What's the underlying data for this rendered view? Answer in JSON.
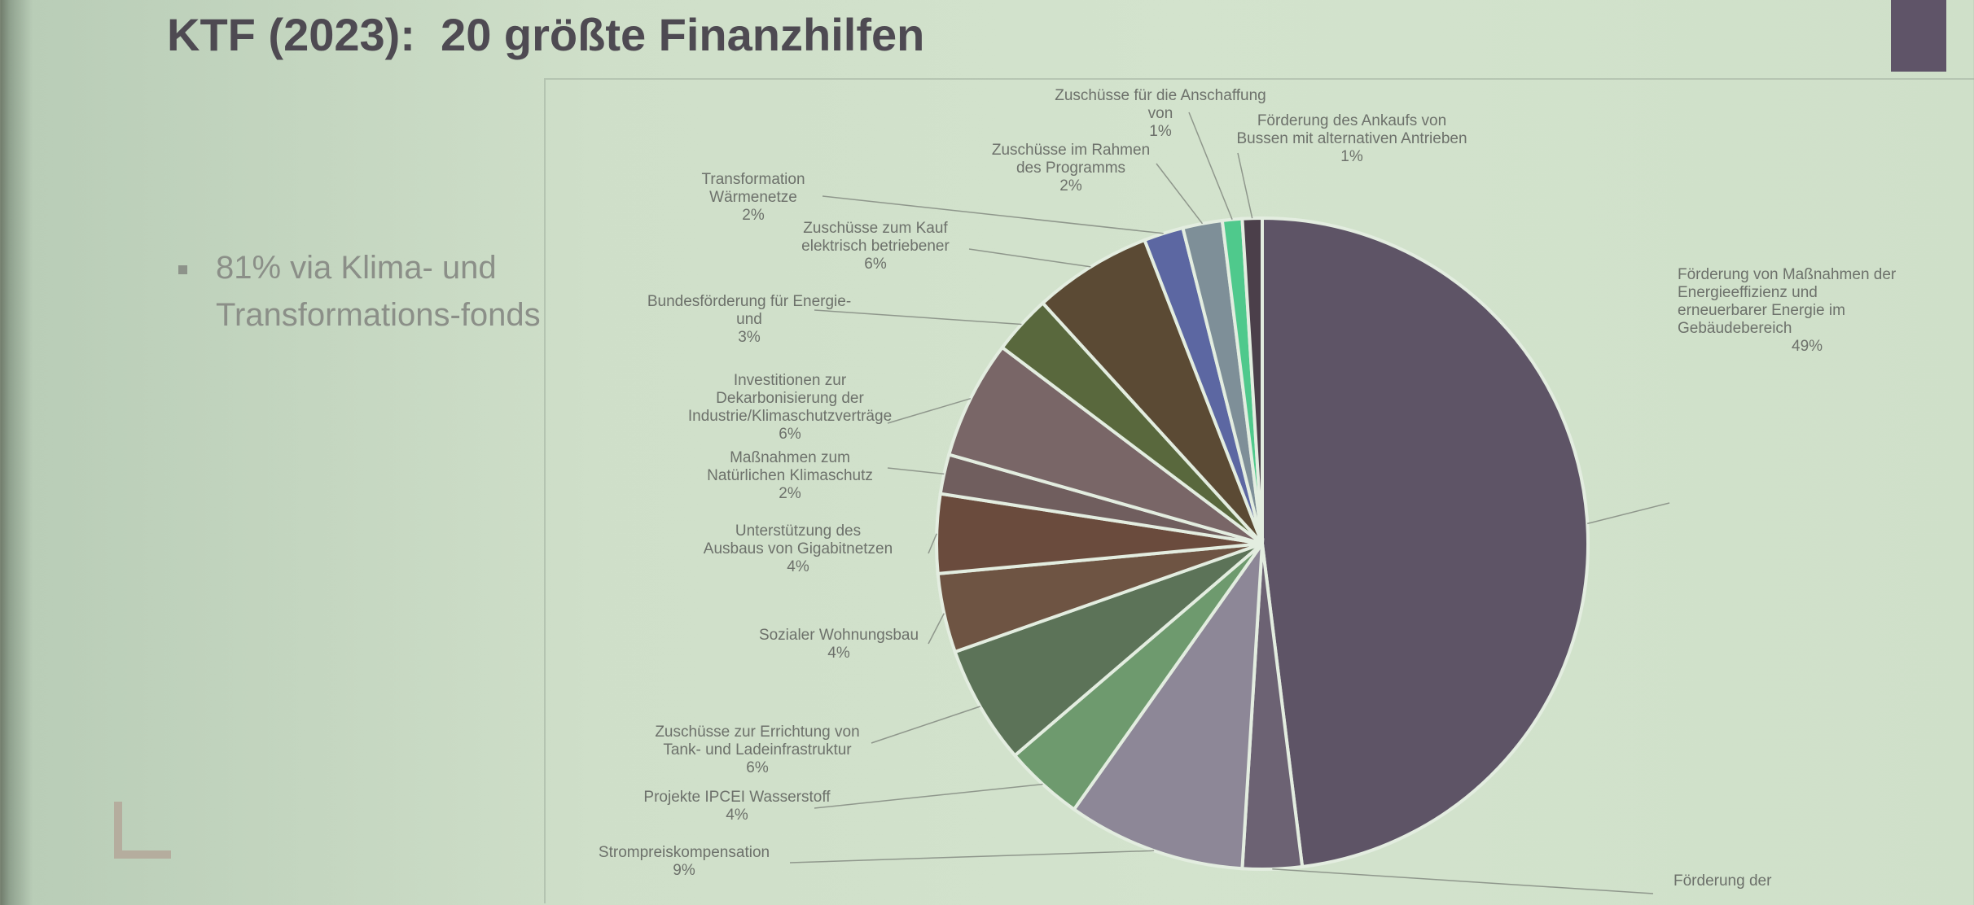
{
  "slide": {
    "title": "KTF (2023):  20 größte Finanzhilfen",
    "bullet": "81% via Klima- und Transformations-fonds"
  },
  "colors": {
    "background": "#d2e2cc",
    "title": "#4e4a52",
    "bullet_text": "#8b8f88",
    "accent_block": "#5f5468"
  },
  "chart_data": {
    "type": "pie",
    "title": "",
    "slices": [
      {
        "label": "Förderung von Maßnahmen der Energieeffizienz und erneuerbarer Energie im Gebäudebereich",
        "value": 49,
        "value_label": "49%",
        "color": "#5e5466"
      },
      {
        "label": "Förderung der",
        "value": 3,
        "value_label": "",
        "color": "#6c6273"
      },
      {
        "label": "Strompreiskompensation",
        "value": 9,
        "value_label": "9%",
        "color": "#8d8797"
      },
      {
        "label": "Projekte IPCEI Wasserstoff",
        "value": 4,
        "value_label": "4%",
        "color": "#6e9a6e"
      },
      {
        "label": "Zuschüsse zur Errichtung von Tank- und Ladeinfrastruktur",
        "value": 6,
        "value_label": "6%",
        "color": "#5c7358"
      },
      {
        "label": "Sozialer Wohnungsbau",
        "value": 4,
        "value_label": "4%",
        "color": "#6e5443"
      },
      {
        "label": "Unterstützung des Ausbaus von Gigabitnetzen",
        "value": 4,
        "value_label": "4%",
        "color": "#6a4b3d"
      },
      {
        "label": "Maßnahmen zum Natürlichen Klimaschutz",
        "value": 2,
        "value_label": "2%",
        "color": "#705e5e"
      },
      {
        "label": "Investitionen zur Dekarbonisierung der Industrie/Klimaschutzverträge",
        "value": 6,
        "value_label": "6%",
        "color": "#796667"
      },
      {
        "label": "Bundesförderung für Energie- und",
        "value": 3,
        "value_label": "3%",
        "color": "#59683d"
      },
      {
        "label": "Zuschüsse zum Kauf elektrisch betriebener",
        "value": 6,
        "value_label": "6%",
        "color": "#5b4a34"
      },
      {
        "label": "Transformation Wärmenetze",
        "value": 2,
        "value_label": "2%",
        "color": "#5c67a2"
      },
      {
        "label": "Zuschüsse im Rahmen des Programms",
        "value": 2,
        "value_label": "2%",
        "color": "#7e8f98"
      },
      {
        "label": "Zuschüsse für die Anschaffung von",
        "value": 1,
        "value_label": "1%",
        "color": "#4fc98c"
      },
      {
        "label": "Förderung des Ankaufs von Bussen mit alternativen Antrieben",
        "value": 1,
        "value_label": "1%",
        "color": "#4b3f4a"
      }
    ],
    "legend": "none",
    "data_labels": "outside with leader lines"
  }
}
